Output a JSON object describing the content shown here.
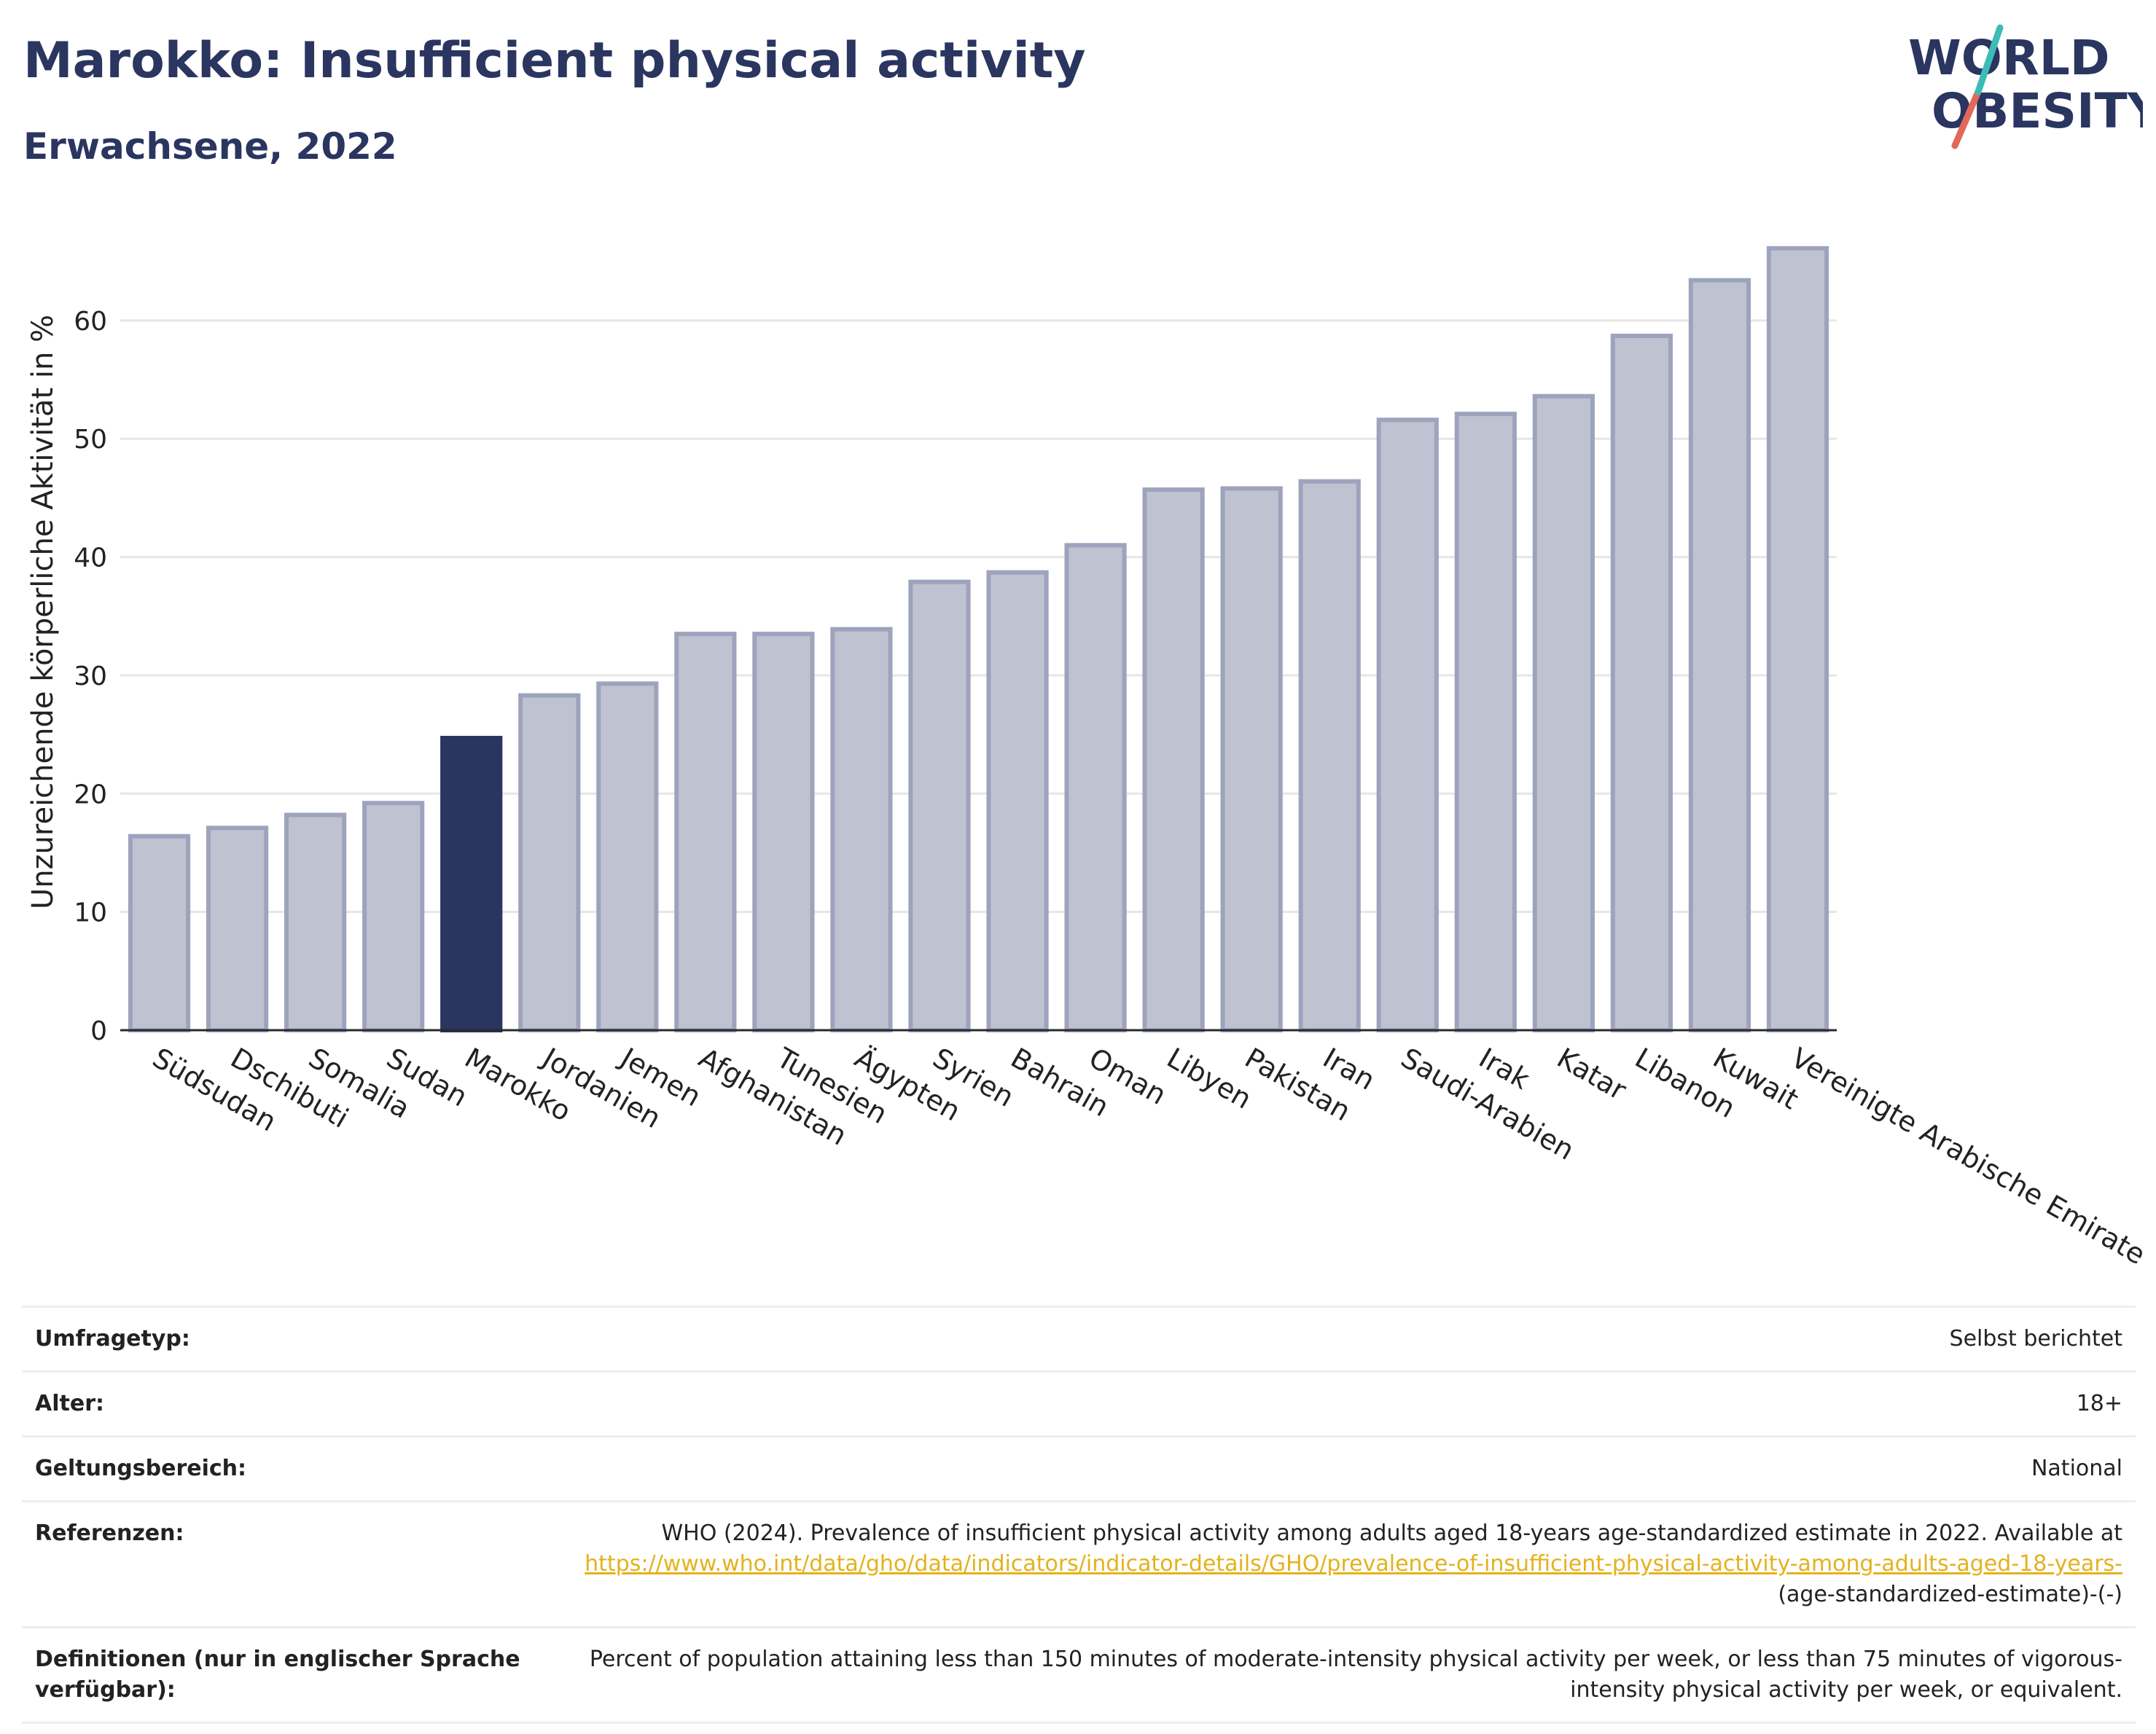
{
  "header": {
    "title": "Marokko: Insufficient physical activity",
    "subtitle": "Erwachsene, 2022"
  },
  "logo": {
    "line1": "WORLD",
    "line2": "OBESITY"
  },
  "colors": {
    "highlight": "#2a3560",
    "bar": "#bfc2d0",
    "bar_border": "#9ea3bd",
    "accent_teal": "#3cbcb5",
    "accent_red": "#e2685a",
    "link": "#e3b21d"
  },
  "chart_data": {
    "type": "bar",
    "title": "Marokko: Insufficient physical activity",
    "subtitle": "Erwachsene, 2022",
    "ylabel": "Unzureichende körperliche Aktivität in %",
    "xlabel": "",
    "ylim": [
      0,
      68
    ],
    "yticks": [
      0,
      10,
      20,
      30,
      40,
      50,
      60
    ],
    "grid": true,
    "highlight": "Marokko",
    "categories": [
      "Südsudan",
      "Dschibuti",
      "Somalia",
      "Sudan",
      "Marokko",
      "Jordanien",
      "Jemen",
      "Afghanistan",
      "Tunesien",
      "Ägypten",
      "Syrien",
      "Bahrain",
      "Oman",
      "Libyen",
      "Pakistan",
      "Iran",
      "Saudi-Arabien",
      "Irak",
      "Katar",
      "Libanon",
      "Kuwait",
      "Vereinigte Arabische Emirate"
    ],
    "values": [
      16.4,
      17.1,
      18.2,
      19.2,
      24.7,
      28.3,
      29.3,
      33.5,
      33.5,
      33.9,
      37.9,
      38.7,
      41.0,
      45.7,
      45.8,
      46.4,
      51.6,
      52.1,
      53.6,
      58.7,
      63.4,
      66.1
    ]
  },
  "meta": [
    {
      "key": "Umfragetyp:",
      "value": "Selbst berichtet"
    },
    {
      "key": "Alter:",
      "value": "18+"
    },
    {
      "key": "Geltungsbereich:",
      "value": "National"
    },
    {
      "key": "Referenzen:",
      "value_pre": "WHO (2024). Prevalence of insufficient physical activity among adults aged 18-years age-standardized estimate in 2022. Available at",
      "link": "https://www.who.int/data/gho/data/indicators/indicator-details/GHO/prevalence-of-insufficient-physical-activity-among-adults-aged-18-years-",
      "value_post": "(age-standardized-estimate)-(-)"
    },
    {
      "key": "Definitionen (nur in englischer Sprache verfügbar):",
      "value": "Percent of population attaining less than 150 minutes of moderate-intensity physical activity per week, or less than 75 minutes of vigorous-intensity physical activity per week, or equivalent."
    }
  ]
}
